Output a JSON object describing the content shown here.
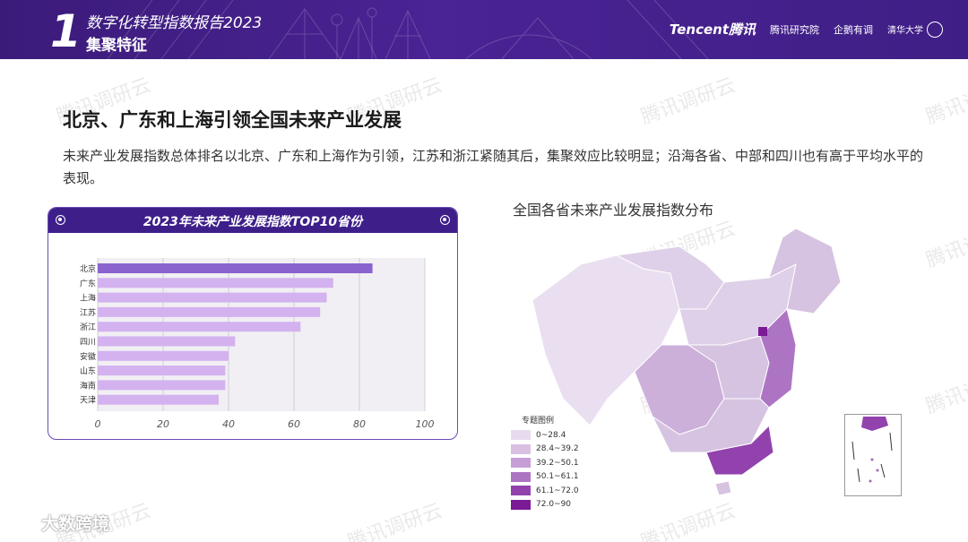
{
  "header": {
    "section_number": "1",
    "title": "数字化转型指数报告2023",
    "subtitle": "集聚特征",
    "logos": {
      "tencent": "Tencent腾讯",
      "research": "腾讯研究院",
      "partner": "企鹅有调",
      "tsinghua": "清华大学"
    }
  },
  "watermark_text": "腾讯调研云",
  "main_title": "北京、广东和上海引领全国未来产业发展",
  "description": "未来产业发展指数总体排名以北京、广东和上海作为引领，江苏和浙江紧随其后，集聚效应比较明显；沿海各省、中部和四川也有高于平均水平的表现。",
  "bar_panel": {
    "title": "2023年未来产业发展指数TOP10省份"
  },
  "map_panel": {
    "title": "全国各省未来产业发展指数分布",
    "legend_title": "专题图例",
    "legend": [
      {
        "label": "0~28.4",
        "color": "#e8dbef"
      },
      {
        "label": "28.4~39.2",
        "color": "#d9c0e3"
      },
      {
        "label": "39.2~50.1",
        "color": "#c79fd6"
      },
      {
        "label": "50.1~61.1",
        "color": "#ad74c4"
      },
      {
        "label": "61.1~72.0",
        "color": "#9242ad"
      },
      {
        "label": "72.0~90",
        "color": "#7a1a95"
      }
    ]
  },
  "footer_logo": "大数跨境",
  "chart_data": {
    "type": "bar",
    "orientation": "horizontal",
    "title": "2023年未来产业发展指数TOP10省份",
    "categories": [
      "北京",
      "广东",
      "上海",
      "江苏",
      "浙江",
      "四川",
      "安徽",
      "山东",
      "海南",
      "天津"
    ],
    "values": [
      84,
      72,
      70,
      68,
      62,
      42,
      40,
      39,
      39,
      37
    ],
    "xlim": [
      0,
      100
    ],
    "xticks": [
      0,
      20,
      40,
      60,
      80,
      100
    ],
    "grid": true,
    "colors": {
      "top": "#8a63cf",
      "rest": "#d3b2ef"
    }
  }
}
